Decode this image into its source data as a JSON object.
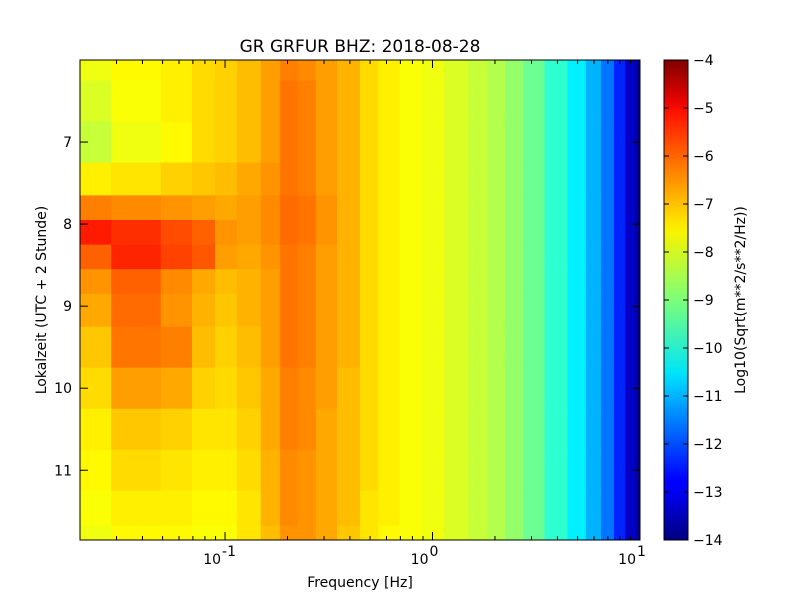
{
  "chart_data": {
    "type": "heatmap",
    "title": "GR GRFUR BHZ: 2018-08-28",
    "xlabel": "Frequency [Hz]",
    "ylabel": "Lokalzeit (UTC + 2 Stunde)",
    "xscale": "log",
    "xlim": [
      0.02,
      10
    ],
    "ylim": [
      11.85,
      6.0
    ],
    "y_inverted": true,
    "xticks": [
      {
        "value": 0.1,
        "base": "10",
        "exp": "-1"
      },
      {
        "value": 1,
        "base": "10",
        "exp": "0"
      },
      {
        "value": 10,
        "base": "10",
        "exp": "1"
      }
    ],
    "yticks": [
      {
        "value": 7,
        "label": "7"
      },
      {
        "value": 8,
        "label": "8"
      },
      {
        "value": 9,
        "label": "9"
      },
      {
        "value": 10,
        "label": "10"
      },
      {
        "value": 11,
        "label": "11"
      }
    ],
    "colormap": "jet",
    "colorbar": {
      "label": "Log10(Sqrt(m**2/s**2/Hz))",
      "range": [
        -14,
        -4
      ],
      "ticks": [
        {
          "value": -4,
          "label": "−4"
        },
        {
          "value": -5,
          "label": "−5"
        },
        {
          "value": -6,
          "label": "−6"
        },
        {
          "value": -7,
          "label": "−7"
        },
        {
          "value": -8,
          "label": "−8"
        },
        {
          "value": -9,
          "label": "−9"
        },
        {
          "value": -10,
          "label": "−10"
        },
        {
          "value": -11,
          "label": "−11"
        },
        {
          "value": -12,
          "label": "−12"
        },
        {
          "value": -13,
          "label": "−13"
        },
        {
          "value": -14,
          "label": "−14"
        }
      ]
    },
    "frequency_bins": [
      0.02,
      0.04,
      0.06,
      0.08,
      0.1,
      0.13,
      0.17,
      0.2,
      0.25,
      0.3,
      0.4,
      0.5,
      0.6,
      0.8,
      1.0,
      1.3,
      1.7,
      2.0,
      2.5,
      3.0,
      4.0,
      5.0,
      6.0,
      7.0,
      8.0,
      9.0,
      10.0
    ],
    "time_bins": [
      6.0,
      6.5,
      7.0,
      7.5,
      7.8,
      8.1,
      8.4,
      8.7,
      9.0,
      9.5,
      10.0,
      10.5,
      11.0,
      11.5,
      11.85
    ],
    "psd_values": [
      [
        -7.9,
        -7.7,
        -7.6,
        -7.4,
        -7.3,
        -7.1,
        -6.8,
        -6.5,
        -6.6,
        -6.8,
        -7.0,
        -7.4,
        -7.6,
        -7.8,
        -7.9,
        -8.1,
        -8.3,
        -8.5,
        -8.8,
        -9.2,
        -9.8,
        -10.4,
        -11.0,
        -11.6,
        -12.4,
        -13.3,
        -13.8
      ],
      [
        -8.1,
        -7.8,
        -7.6,
        -7.4,
        -7.3,
        -7.1,
        -6.8,
        -6.4,
        -6.5,
        -6.8,
        -7.0,
        -7.4,
        -7.6,
        -7.8,
        -7.9,
        -8.1,
        -8.3,
        -8.5,
        -8.8,
        -9.2,
        -9.8,
        -10.4,
        -11.0,
        -11.6,
        -12.4,
        -13.3,
        -13.8
      ],
      [
        -8.3,
        -7.9,
        -7.7,
        -7.4,
        -7.3,
        -7.1,
        -6.8,
        -6.4,
        -6.5,
        -6.8,
        -7.0,
        -7.4,
        -7.6,
        -7.8,
        -7.9,
        -8.1,
        -8.3,
        -8.5,
        -8.8,
        -9.2,
        -9.8,
        -10.4,
        -11.0,
        -11.6,
        -12.4,
        -13.3,
        -13.8
      ],
      [
        -7.6,
        -7.5,
        -7.3,
        -7.2,
        -7.1,
        -6.9,
        -6.7,
        -6.4,
        -6.5,
        -6.8,
        -7.0,
        -7.4,
        -7.6,
        -7.8,
        -7.9,
        -8.1,
        -8.3,
        -8.5,
        -8.8,
        -9.2,
        -9.8,
        -10.4,
        -11.0,
        -11.6,
        -12.4,
        -13.3,
        -13.8
      ],
      [
        -6.5,
        -6.6,
        -6.7,
        -6.8,
        -6.9,
        -6.8,
        -6.6,
        -6.3,
        -6.4,
        -6.7,
        -7.0,
        -7.4,
        -7.6,
        -7.8,
        -7.9,
        -8.1,
        -8.3,
        -8.5,
        -8.8,
        -9.2,
        -9.8,
        -10.4,
        -11.0,
        -11.6,
        -12.4,
        -13.3,
        -13.8
      ],
      [
        -5.5,
        -5.7,
        -6.0,
        -6.2,
        -6.7,
        -6.8,
        -6.6,
        -6.3,
        -6.4,
        -6.7,
        -7.0,
        -7.4,
        -7.6,
        -7.8,
        -7.9,
        -8.1,
        -8.3,
        -8.5,
        -8.8,
        -9.2,
        -9.8,
        -10.4,
        -11.0,
        -11.6,
        -12.4,
        -13.3,
        -13.8
      ],
      [
        -6.2,
        -5.6,
        -5.9,
        -6.1,
        -6.8,
        -6.9,
        -6.7,
        -6.4,
        -6.5,
        -6.8,
        -7.0,
        -7.4,
        -7.6,
        -7.8,
        -7.9,
        -8.1,
        -8.3,
        -8.5,
        -8.8,
        -9.2,
        -9.8,
        -10.4,
        -11.0,
        -11.6,
        -12.4,
        -13.3,
        -13.8
      ],
      [
        -6.7,
        -6.2,
        -6.6,
        -6.9,
        -7.1,
        -7.0,
        -6.8,
        -6.4,
        -6.5,
        -6.8,
        -7.0,
        -7.4,
        -7.6,
        -7.8,
        -7.9,
        -8.1,
        -8.3,
        -8.5,
        -8.8,
        -9.2,
        -9.8,
        -10.4,
        -11.0,
        -11.6,
        -12.4,
        -13.3,
        -13.8
      ],
      [
        -6.9,
        -6.3,
        -6.7,
        -7.0,
        -7.2,
        -7.0,
        -6.8,
        -6.4,
        -6.5,
        -6.8,
        -7.0,
        -7.4,
        -7.6,
        -7.8,
        -7.9,
        -8.1,
        -8.3,
        -8.5,
        -8.8,
        -9.2,
        -9.8,
        -10.4,
        -11.0,
        -11.6,
        -12.4,
        -13.3,
        -13.8
      ],
      [
        -7.2,
        -6.4,
        -6.5,
        -7.1,
        -7.3,
        -7.1,
        -6.8,
        -6.4,
        -6.5,
        -6.8,
        -7.0,
        -7.4,
        -7.6,
        -7.8,
        -7.9,
        -8.1,
        -8.3,
        -8.5,
        -8.8,
        -9.2,
        -9.8,
        -10.4,
        -11.0,
        -11.6,
        -12.4,
        -13.3,
        -13.8
      ],
      [
        -7.4,
        -6.8,
        -6.9,
        -7.3,
        -7.4,
        -7.2,
        -6.9,
        -6.5,
        -6.6,
        -6.8,
        -7.1,
        -7.4,
        -7.6,
        -7.8,
        -7.9,
        -8.1,
        -8.3,
        -8.5,
        -8.8,
        -9.2,
        -9.8,
        -10.4,
        -11.0,
        -11.6,
        -12.4,
        -13.3,
        -13.8
      ],
      [
        -7.6,
        -7.2,
        -7.3,
        -7.5,
        -7.5,
        -7.3,
        -6.9,
        -6.5,
        -6.6,
        -6.9,
        -7.1,
        -7.4,
        -7.6,
        -7.8,
        -7.9,
        -8.1,
        -8.3,
        -8.5,
        -8.8,
        -9.2,
        -9.8,
        -10.4,
        -11.0,
        -11.6,
        -12.4,
        -13.3,
        -13.8
      ],
      [
        -7.7,
        -7.4,
        -7.5,
        -7.6,
        -7.6,
        -7.4,
        -7.0,
        -6.6,
        -6.7,
        -6.9,
        -7.1,
        -7.4,
        -7.6,
        -7.8,
        -7.9,
        -8.1,
        -8.3,
        -8.5,
        -8.8,
        -9.2,
        -9.8,
        -10.4,
        -11.0,
        -11.6,
        -12.4,
        -13.3,
        -13.8
      ],
      [
        -7.8,
        -7.6,
        -7.6,
        -7.7,
        -7.7,
        -7.5,
        -7.0,
        -6.6,
        -6.7,
        -6.9,
        -7.1,
        -7.5,
        -7.6,
        -7.8,
        -7.9,
        -8.1,
        -8.3,
        -8.5,
        -8.8,
        -9.2,
        -9.8,
        -10.4,
        -11.0,
        -11.6,
        -12.4,
        -13.3,
        -13.8
      ],
      [
        -7.9,
        -7.7,
        -7.7,
        -7.8,
        -7.8,
        -7.5,
        -7.1,
        -6.7,
        -6.7,
        -6.9,
        -7.2,
        -7.5,
        -7.7,
        -7.8,
        -7.9,
        -8.1,
        -8.3,
        -8.5,
        -8.8,
        -9.2,
        -9.8,
        -10.4,
        -11.0,
        -11.6,
        -12.4,
        -13.3,
        -13.8
      ]
    ]
  }
}
